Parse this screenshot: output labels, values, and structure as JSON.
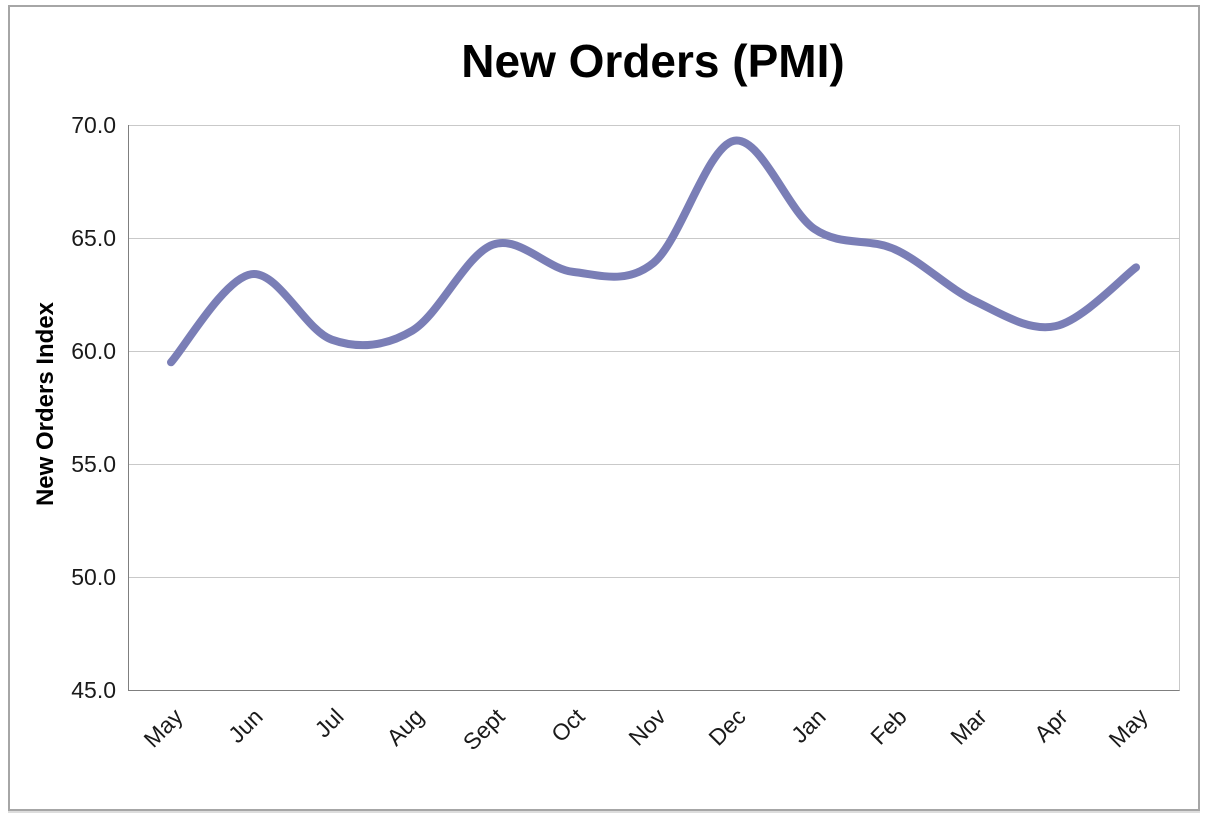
{
  "window": {
    "background_color": "#ffffff",
    "border_color": "#a6a6a6"
  },
  "chart_data": {
    "type": "line",
    "title": "New Orders (PMI)",
    "xlabel": "",
    "ylabel": "New Orders Index",
    "categories": [
      "May",
      "Jun",
      "Jul",
      "Aug",
      "Sept",
      "Oct",
      "Nov",
      "Dec",
      "Jan",
      "Feb",
      "Mar",
      "Apr",
      "May"
    ],
    "series": [
      {
        "name": "New Orders (PMI)",
        "values": [
          59.5,
          63.4,
          60.5,
          60.9,
          64.7,
          63.5,
          63.9,
          69.3,
          65.4,
          64.5,
          62.2,
          61.1,
          63.7
        ],
        "color": "#7a7eb6",
        "line_width": 8,
        "smooth": true
      }
    ],
    "ylim": [
      45.0,
      70.0
    ],
    "yticks": [
      70.0,
      65.0,
      60.0,
      55.0,
      50.0,
      45.0
    ],
    "ytick_labels": [
      "70.0",
      "65.0",
      "60.0",
      "55.0",
      "50.0",
      "45.0"
    ],
    "grid": "horizontal",
    "gridline_color": "#c9c9c9",
    "axis_line_color": "#7f7f7f",
    "legend": "none",
    "x_label_rotation": -45,
    "markers": "none"
  }
}
